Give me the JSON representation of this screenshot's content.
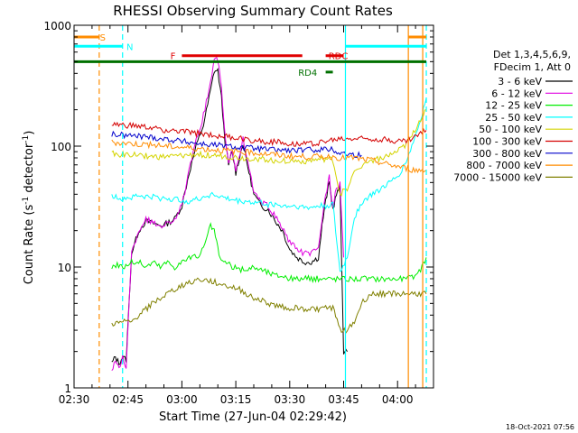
{
  "chart_data": {
    "type": "line",
    "title": "RHESSI Observing Summary Count Rates",
    "xlabel": "Start Time (27-Jun-04 02:29:42)",
    "ylabel_main": "Count Rate (s",
    "ylabel_sup1": "-1",
    "ylabel_mid": " detector",
    "ylabel_sup2": "-1",
    "ylabel_end": ")",
    "yscale": "log",
    "xlim_min": [
      150,
      250
    ],
    "ylim": [
      1,
      1000
    ],
    "x_ticks": [
      {
        "min": 150,
        "label": "02:30"
      },
      {
        "min": 165,
        "label": "02:45"
      },
      {
        "min": 180,
        "label": "03:00"
      },
      {
        "min": 195,
        "label": "03:15"
      },
      {
        "min": 210,
        "label": "03:30"
      },
      {
        "min": 225,
        "label": "03:45"
      },
      {
        "min": 240,
        "label": "04:00"
      }
    ],
    "y_ticks": [
      {
        "value": 1,
        "label": "1"
      },
      {
        "value": 10,
        "label": "10"
      },
      {
        "value": 100,
        "label": "100"
      },
      {
        "value": 1000,
        "label": "1000"
      }
    ],
    "timestamp": "18-Oct-2021 07:56",
    "legend_title": [
      "Det 1,3,4,5,6,9,",
      "FDecim 1, Att 0"
    ],
    "series": [
      {
        "name": "3 - 6 keV",
        "color": "#000000",
        "x": [
          160.5,
          161.5,
          162.5,
          163.5,
          164.5,
          166,
          168,
          170,
          172,
          174,
          176,
          178,
          180,
          182,
          184,
          186,
          188,
          189,
          190,
          191,
          192,
          193,
          194,
          195,
          196,
          197,
          198,
          199,
          200,
          202,
          204,
          206,
          208,
          210,
          212,
          214,
          216,
          218,
          219,
          220,
          221,
          222,
          223,
          224,
          225,
          226
        ],
        "y": [
          1.6,
          1.8,
          1.6,
          1.8,
          1.7,
          13,
          20,
          24,
          23,
          22,
          23,
          25,
          32,
          60,
          100,
          150,
          290,
          420,
          420,
          250,
          110,
          70,
          90,
          60,
          80,
          105,
          75,
          55,
          40,
          32,
          30,
          24,
          20,
          14,
          12,
          11,
          11,
          12,
          22,
          35,
          50,
          30,
          40,
          45,
          2,
          2
        ]
      },
      {
        "name": "6 - 12 keV",
        "color": "#e000e0",
        "x": [
          160.5,
          161.5,
          162.5,
          163.5,
          164.5,
          166,
          168,
          170,
          172,
          174,
          176,
          178,
          180,
          182,
          184,
          186,
          188,
          189,
          190,
          191,
          192,
          193,
          194,
          195,
          196,
          197,
          198,
          199,
          200,
          202,
          204,
          206,
          208,
          210,
          212,
          214,
          216,
          218,
          219,
          220,
          221,
          222,
          223,
          224,
          225
        ],
        "y": [
          1.4,
          1.7,
          1.4,
          1.8,
          1.5,
          13,
          20,
          25,
          23,
          22,
          23,
          25,
          32,
          62,
          110,
          180,
          340,
          520,
          520,
          300,
          120,
          70,
          95,
          65,
          85,
          115,
          80,
          60,
          42,
          34,
          32,
          26,
          21,
          16,
          14,
          13,
          13,
          14,
          25,
          40,
          55,
          32,
          44,
          50,
          12
        ]
      },
      {
        "name": "12 - 25 keV",
        "color": "#00ee00",
        "x": [
          160.5,
          162,
          164,
          166,
          168,
          170,
          172,
          174,
          176,
          178,
          180,
          182,
          184,
          186,
          188,
          189,
          190,
          191,
          192,
          194,
          196,
          198,
          200,
          202,
          204,
          206,
          208,
          210,
          212,
          214,
          216,
          218,
          220,
          222,
          224,
          226,
          228,
          230,
          232,
          234,
          236,
          238,
          240,
          242,
          244,
          246,
          248
        ],
        "y": [
          10,
          10.5,
          10,
          11,
          11,
          10,
          11,
          10,
          11,
          10,
          11,
          12,
          12,
          14,
          22,
          20,
          14,
          11,
          11,
          10,
          9.5,
          9.5,
          10,
          9.5,
          9,
          8.5,
          8.5,
          8,
          8,
          8,
          8,
          8,
          8,
          8,
          8,
          8,
          8,
          8,
          8,
          8,
          8,
          8,
          8,
          8,
          8.2,
          9,
          12
        ]
      },
      {
        "name": "25 - 50 keV",
        "color": "#00ffff",
        "x": [
          160.5,
          162,
          164,
          166,
          168,
          170,
          172,
          174,
          176,
          178,
          180,
          182,
          184,
          186,
          188,
          190,
          192,
          194,
          196,
          198,
          200,
          202,
          204,
          206,
          208,
          210,
          212,
          214,
          216,
          218,
          220,
          222,
          224,
          226,
          228,
          230,
          232,
          234,
          236,
          238,
          240,
          242,
          244,
          246,
          248
        ],
        "y": [
          38,
          38,
          37,
          38,
          39,
          38,
          38,
          37,
          37,
          36,
          36,
          35,
          36,
          38,
          40,
          39,
          37,
          36,
          35,
          35,
          34,
          34,
          33,
          33,
          32,
          32,
          32,
          31,
          31,
          32,
          32,
          33,
          9,
          12,
          26,
          34,
          38,
          42,
          46,
          50,
          56,
          70,
          100,
          150,
          250
        ]
      },
      {
        "name": "50 - 100 keV",
        "color": "#d4d400",
        "x": [
          160.5,
          162,
          164,
          166,
          168,
          170,
          172,
          174,
          176,
          178,
          180,
          182,
          184,
          186,
          188,
          190,
          192,
          194,
          196,
          198,
          200,
          202,
          204,
          206,
          208,
          210,
          212,
          214,
          216,
          218,
          220,
          222,
          224,
          226,
          228,
          230,
          232,
          234,
          236,
          238,
          240,
          242,
          244,
          246,
          248
        ],
        "y": [
          88,
          86,
          85,
          85,
          84,
          83,
          82,
          81,
          82,
          82,
          83,
          84,
          85,
          85,
          84,
          83,
          82,
          81,
          80,
          79,
          79,
          78,
          77,
          76,
          76,
          75,
          75,
          75,
          76,
          77,
          78,
          77,
          40,
          45,
          60,
          70,
          75,
          78,
          80,
          84,
          90,
          100,
          120,
          160,
          200
        ]
      },
      {
        "name": "100 - 300 keV",
        "color": "#d40000",
        "x": [
          160.5,
          162,
          164,
          166,
          168,
          170,
          172,
          174,
          176,
          178,
          180,
          182,
          184,
          186,
          188,
          190,
          192,
          194,
          196,
          198,
          200,
          202,
          204,
          206,
          208,
          210,
          212,
          214,
          216,
          218,
          220,
          222,
          224,
          226,
          228,
          230,
          232,
          234,
          236,
          238,
          240,
          242,
          244,
          246,
          248
        ],
        "y": [
          150,
          150,
          148,
          147,
          145,
          143,
          140,
          138,
          135,
          133,
          132,
          130,
          128,
          126,
          124,
          122,
          120,
          118,
          116,
          114,
          112,
          110,
          109,
          108,
          107,
          106,
          105,
          105,
          105,
          107,
          110,
          112,
          115,
          115,
          116,
          116,
          116,
          115,
          114,
          112,
          110,
          110,
          115,
          125,
          135
        ]
      },
      {
        "name": "300 - 800 keV",
        "color": "#0000cc",
        "x": [
          160.5,
          162,
          164,
          166,
          168,
          170,
          172,
          174,
          176,
          178,
          180,
          182,
          184,
          186,
          188,
          190,
          192,
          194,
          196,
          198,
          200,
          202,
          204,
          206,
          208,
          210,
          212,
          214,
          216,
          218,
          220,
          222,
          224,
          226,
          228,
          230
        ],
        "y": [
          125,
          124,
          123,
          122,
          121,
          120,
          118,
          116,
          114,
          112,
          110,
          108,
          106,
          104,
          103,
          102,
          100,
          99,
          98,
          97,
          96,
          95,
          94,
          93,
          93,
          92,
          92,
          92,
          93,
          94,
          95,
          93,
          88,
          86,
          85,
          84
        ]
      },
      {
        "name": "800 - 7000 keV",
        "color": "#ff8c00",
        "x": [
          160.5,
          162,
          164,
          166,
          168,
          170,
          172,
          174,
          176,
          178,
          180,
          182,
          184,
          186,
          188,
          190,
          192,
          194,
          196,
          198,
          200,
          202,
          204,
          206,
          208,
          210,
          212,
          214,
          216,
          218,
          220,
          222,
          224,
          226,
          228,
          230,
          232,
          234,
          236,
          238,
          240,
          242,
          244,
          246,
          248
        ],
        "y": [
          108,
          107,
          106,
          105,
          104,
          103,
          102,
          101,
          100,
          99,
          98,
          97,
          96,
          95,
          94,
          93,
          92,
          91,
          90,
          89,
          88,
          87,
          86,
          85,
          84,
          83,
          82,
          82,
          82,
          82,
          82,
          82,
          80,
          80,
          80,
          78,
          77,
          75,
          72,
          70,
          68,
          66,
          64,
          63,
          63
        ]
      },
      {
        "name": "7000 - 15000 keV",
        "color": "#808000",
        "x": [
          160.5,
          162,
          164,
          166,
          168,
          170,
          172,
          174,
          176,
          178,
          180,
          182,
          184,
          186,
          188,
          190,
          192,
          194,
          196,
          198,
          200,
          202,
          204,
          206,
          208,
          210,
          212,
          214,
          216,
          218,
          220,
          222,
          224,
          226,
          228,
          230,
          232,
          234,
          236,
          238,
          240,
          242,
          244,
          246,
          248
        ],
        "y": [
          3.4,
          3.4,
          3.5,
          3.5,
          4,
          4.5,
          5,
          5.5,
          6,
          6.5,
          7,
          7.5,
          7.8,
          7.8,
          7.6,
          7.4,
          7,
          6.8,
          6.5,
          6,
          5.6,
          5.3,
          5,
          4.8,
          4.7,
          4.6,
          4.6,
          4.5,
          4.5,
          4.5,
          4.6,
          4.6,
          3,
          3,
          3.5,
          5,
          5.8,
          6,
          6,
          6,
          6,
          6,
          6,
          6,
          6
        ]
      }
    ],
    "flags": [
      {
        "label": "S",
        "color": "#ff8c00",
        "x": [
          150,
          157
        ],
        "value": 800,
        "label_x": 158
      },
      {
        "label": "N",
        "color": "#00ffff",
        "x": [
          150,
          163.5
        ],
        "value": 670,
        "label_x": 165.5
      },
      {
        "label": "",
        "color": "#00ffff",
        "x": [
          225.5,
          248
        ],
        "value": 670,
        "label_x": null
      },
      {
        "label": "",
        "color": "#ff8c00",
        "x": [
          243,
          248
        ],
        "value": 800,
        "label_x": null
      },
      {
        "label": "F",
        "color": "#e00000",
        "x": [
          180,
          213.5
        ],
        "value": 560,
        "label_x": 177.5
      },
      {
        "label": "RDC",
        "color": "#e00000",
        "x": [
          220,
          225
        ],
        "value": 560,
        "label_x": 223.5
      },
      {
        "label": "",
        "color": "#007000",
        "x": [
          150,
          248
        ],
        "value": 500,
        "label_x": null
      },
      {
        "label": "RD4",
        "color": "#007000",
        "x": [
          220,
          222
        ],
        "value": 410,
        "label_x": 215
      }
    ],
    "vlines": [
      {
        "color": "#ff8c00",
        "min": 157,
        "dashed": true
      },
      {
        "color": "#00ffff",
        "min": 163.5,
        "dashed": true
      },
      {
        "color": "#00ffff",
        "min": 225.5,
        "dashed": false
      },
      {
        "color": "#ff8c00",
        "min": 243,
        "dashed": false
      },
      {
        "color": "#ff8c00",
        "min": 247,
        "dashed": false
      },
      {
        "color": "#00ffff",
        "min": 248,
        "dashed": true
      }
    ]
  }
}
